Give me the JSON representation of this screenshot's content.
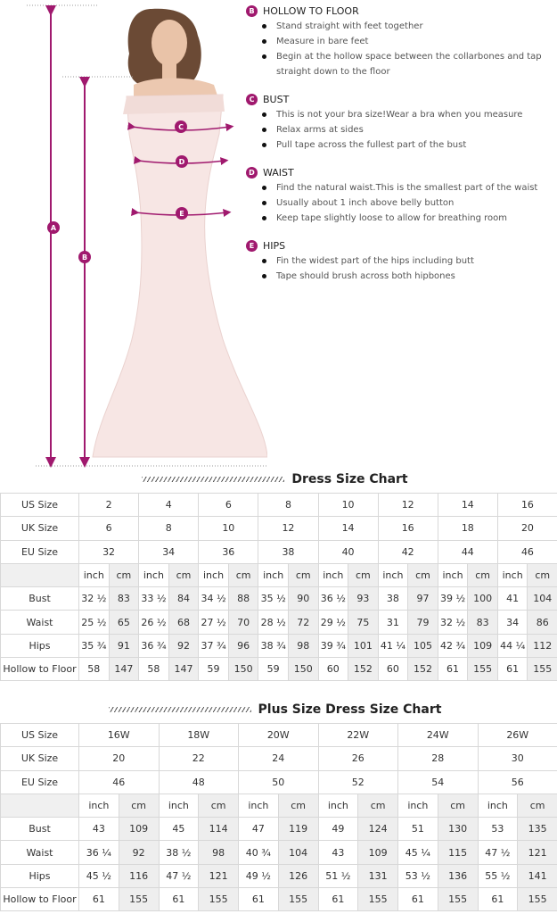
{
  "colors": {
    "accent": "#a0196e",
    "cm_column": "#eeeeee"
  },
  "figure": {
    "markers": [
      "A",
      "B",
      "C",
      "D",
      "E"
    ]
  },
  "instructions": [
    {
      "badge": "B",
      "title": "HOLLOW TO FLOOR",
      "items": [
        "Stand straight with feet together",
        "Measure in bare feet",
        "Begin at the hollow space between the  collarbones and tap straight down to the floor"
      ]
    },
    {
      "badge": "C",
      "title": "BUST",
      "items": [
        "This is not your bra size!Wear a bra when you measure",
        "Relax arms at sides",
        "Pull tape across the fullest part of the bust"
      ]
    },
    {
      "badge": "D",
      "title": "WAIST",
      "items": [
        "Find the natural waist.This is the smallest part of the waist",
        "Usually about 1 inch above belly button",
        "Keep tape slightly loose to allow for breathing room"
      ]
    },
    {
      "badge": "E",
      "title": "HIPS",
      "items": [
        "Fin the widest part of the hips including butt",
        "Tape should brush across both hipbones"
      ]
    }
  ],
  "tables": [
    {
      "title": "Dress Size Chart",
      "size_rows": [
        {
          "label": "US Size",
          "values": [
            "2",
            "4",
            "6",
            "8",
            "10",
            "12",
            "14",
            "16"
          ]
        },
        {
          "label": "UK Size",
          "values": [
            "6",
            "8",
            "10",
            "12",
            "14",
            "16",
            "18",
            "20"
          ]
        },
        {
          "label": "EU Size",
          "values": [
            "32",
            "34",
            "36",
            "38",
            "40",
            "42",
            "44",
            "46"
          ]
        }
      ],
      "unit_labels": {
        "inch": "inch",
        "cm": "cm"
      },
      "measure_rows": [
        {
          "label": "Bust",
          "values": [
            [
              "32 ½",
              "83"
            ],
            [
              "33 ½",
              "84"
            ],
            [
              "34 ½",
              "88"
            ],
            [
              "35 ½",
              "90"
            ],
            [
              "36 ½",
              "93"
            ],
            [
              "38",
              "97"
            ],
            [
              "39 ½",
              "100"
            ],
            [
              "41",
              "104"
            ]
          ]
        },
        {
          "label": "Waist",
          "values": [
            [
              "25 ½",
              "65"
            ],
            [
              "26 ½",
              "68"
            ],
            [
              "27 ½",
              "70"
            ],
            [
              "28 ½",
              "72"
            ],
            [
              "29 ½",
              "75"
            ],
            [
              "31",
              "79"
            ],
            [
              "32 ½",
              "83"
            ],
            [
              "34",
              "86"
            ]
          ]
        },
        {
          "label": "Hips",
          "values": [
            [
              "35 ¾",
              "91"
            ],
            [
              "36 ¾",
              "92"
            ],
            [
              "37 ¾",
              "96"
            ],
            [
              "38 ¾",
              "98"
            ],
            [
              "39 ¾",
              "101"
            ],
            [
              "41 ¼",
              "105"
            ],
            [
              "42 ¾",
              "109"
            ],
            [
              "44 ¼",
              "112"
            ]
          ]
        },
        {
          "label": "Hollow to Floor",
          "values": [
            [
              "58",
              "147"
            ],
            [
              "58",
              "147"
            ],
            [
              "59",
              "150"
            ],
            [
              "59",
              "150"
            ],
            [
              "60",
              "152"
            ],
            [
              "60",
              "152"
            ],
            [
              "61",
              "155"
            ],
            [
              "61",
              "155"
            ]
          ]
        }
      ]
    },
    {
      "title": "Plus Size Dress Size Chart",
      "size_rows": [
        {
          "label": "US Size",
          "values": [
            "16W",
            "18W",
            "20W",
            "22W",
            "24W",
            "26W"
          ]
        },
        {
          "label": "UK Size",
          "values": [
            "20",
            "22",
            "24",
            "26",
            "28",
            "30"
          ]
        },
        {
          "label": "EU Size",
          "values": [
            "46",
            "48",
            "50",
            "52",
            "54",
            "56"
          ]
        }
      ],
      "unit_labels": {
        "inch": "inch",
        "cm": "cm"
      },
      "measure_rows": [
        {
          "label": "Bust",
          "values": [
            [
              "43",
              "109"
            ],
            [
              "45",
              "114"
            ],
            [
              "47",
              "119"
            ],
            [
              "49",
              "124"
            ],
            [
              "51",
              "130"
            ],
            [
              "53",
              "135"
            ]
          ]
        },
        {
          "label": "Waist",
          "values": [
            [
              "36 ¼",
              "92"
            ],
            [
              "38 ½",
              "98"
            ],
            [
              "40 ¾",
              "104"
            ],
            [
              "43",
              "109"
            ],
            [
              "45 ¼",
              "115"
            ],
            [
              "47 ½",
              "121"
            ]
          ]
        },
        {
          "label": "Hips",
          "values": [
            [
              "45 ½",
              "116"
            ],
            [
              "47 ½",
              "121"
            ],
            [
              "49 ½",
              "126"
            ],
            [
              "51 ½",
              "131"
            ],
            [
              "53 ½",
              "136"
            ],
            [
              "55 ½",
              "141"
            ]
          ]
        },
        {
          "label": "Hollow to Floor",
          "values": [
            [
              "61",
              "155"
            ],
            [
              "61",
              "155"
            ],
            [
              "61",
              "155"
            ],
            [
              "61",
              "155"
            ],
            [
              "61",
              "155"
            ],
            [
              "61",
              "155"
            ]
          ]
        }
      ]
    }
  ]
}
